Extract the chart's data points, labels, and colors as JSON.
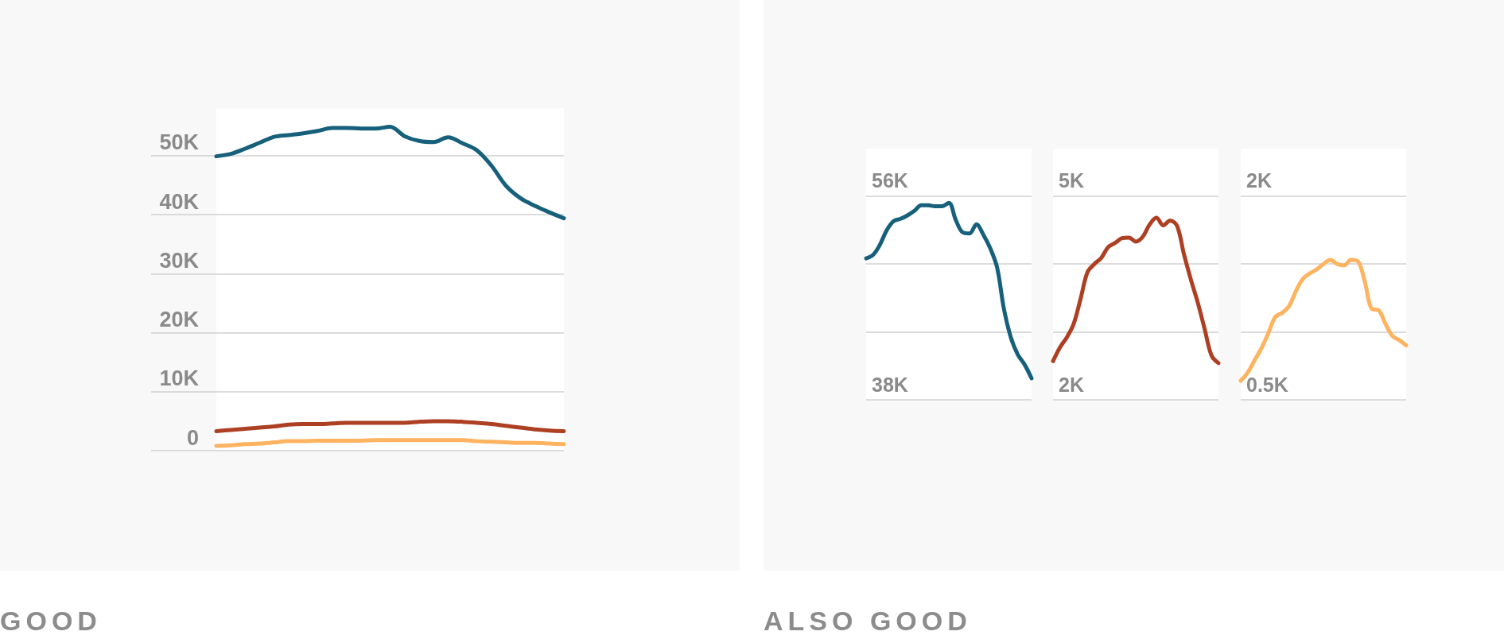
{
  "chart_data": [
    {
      "type": "line",
      "title": "GOOD",
      "categories": [
        null,
        null,
        null,
        null,
        null,
        null,
        null,
        null,
        null,
        null,
        null,
        null,
        null,
        null,
        null,
        null,
        null,
        null,
        null,
        null,
        null,
        null,
        null,
        null,
        null
      ],
      "series": [
        {
          "color": "#17607c",
          "values": [
            49900,
            50300,
            51200,
            52200,
            53200,
            53500,
            53800,
            54200,
            54700,
            54700,
            54600,
            54600,
            54900,
            53300,
            52500,
            52300,
            53100,
            52100,
            50900,
            48300,
            44900,
            42800,
            41500,
            40400,
            39400
          ]
        },
        {
          "color": "#ad3f22",
          "values": [
            3300,
            3500,
            3700,
            3900,
            4100,
            4400,
            4500,
            4500,
            4600,
            4700,
            4700,
            4700,
            4700,
            4700,
            4900,
            5000,
            5000,
            4900,
            4700,
            4500,
            4200,
            3900,
            3600,
            3400,
            3300
          ]
        },
        {
          "color": "#fdb35f",
          "values": [
            800,
            900,
            1100,
            1200,
            1400,
            1600,
            1600,
            1700,
            1700,
            1700,
            1700,
            1800,
            1800,
            1800,
            1800,
            1800,
            1800,
            1800,
            1600,
            1500,
            1400,
            1300,
            1300,
            1200,
            1100
          ]
        }
      ],
      "ylim": [
        0,
        58000
      ],
      "yticks": [
        0,
        {
          "value": 10000,
          "label": "10K"
        },
        {
          "value": 20000,
          "label": "20K"
        },
        {
          "value": 30000,
          "label": "30K"
        },
        {
          "value": 40000,
          "label": "40K"
        },
        {
          "value": 50000,
          "label": "50K"
        }
      ],
      "grid": "y",
      "tick_labels": "y",
      "marker": "none"
    },
    {
      "type": "line",
      "title": "ALSO GOOD",
      "categories": [
        null,
        null,
        null,
        null,
        null,
        null,
        null,
        null,
        null,
        null,
        null,
        null,
        null,
        null,
        null,
        null,
        null,
        null,
        null,
        null,
        null,
        null,
        null,
        null,
        null
      ],
      "series": [
        {
          "color": "#17607c",
          "values": [
            50500,
            50800,
            51700,
            53000,
            53800,
            54000,
            54300,
            54700,
            55200,
            55200,
            55100,
            55100,
            55400,
            53900,
            52800,
            52700,
            53500,
            52600,
            51400,
            49700,
            46000,
            43500,
            42000,
            41100,
            39900
          ]
        }
      ],
      "ylim": [
        38000,
        60200
      ],
      "yticks": [
        {
          "value": 38000,
          "label": "38K"
        },
        {
          "value": 44000,
          "label": null
        },
        {
          "value": 50000,
          "label": null
        },
        {
          "value": 56000,
          "label": "56K"
        }
      ],
      "grid": "y",
      "tick_labels": "y",
      "marker": "none"
    },
    {
      "type": "line",
      "categories": [
        null,
        null,
        null,
        null,
        null,
        null,
        null,
        null,
        null,
        null,
        null,
        null,
        null,
        null,
        null,
        null,
        null,
        null,
        null,
        null,
        null,
        null,
        null,
        null,
        null
      ],
      "series": [
        {
          "color": "#ad3f22",
          "values": [
            2570,
            2770,
            2920,
            3120,
            3490,
            3880,
            4000,
            4090,
            4250,
            4310,
            4380,
            4390,
            4330,
            4400,
            4580,
            4680,
            4570,
            4640,
            4560,
            4140,
            3770,
            3430,
            3040,
            2650,
            2540
          ]
        }
      ],
      "ylim": [
        2000,
        5700
      ],
      "yticks": [
        {
          "value": 2000,
          "label": "2K"
        },
        {
          "value": 3000,
          "label": null
        },
        {
          "value": 4000,
          "label": null
        },
        {
          "value": 5000,
          "label": "5K"
        }
      ],
      "grid": "y",
      "tick_labels": "y",
      "marker": "none"
    },
    {
      "type": "line",
      "categories": [
        null,
        null,
        null,
        null,
        null,
        null,
        null,
        null,
        null,
        null,
        null,
        null,
        null,
        null,
        null,
        null,
        null,
        null,
        null,
        null,
        null,
        null,
        null,
        null,
        null
      ],
      "series": [
        {
          "color": "#fdb35f",
          "values": [
            640,
            700,
            790,
            880,
            990,
            1110,
            1140,
            1190,
            1300,
            1390,
            1430,
            1460,
            1500,
            1530,
            1500,
            1490,
            1530,
            1520,
            1370,
            1170,
            1160,
            1060,
            970,
            940,
            900
          ]
        }
      ],
      "ylim": [
        500,
        2350
      ],
      "yticks": [
        {
          "value": 500,
          "label": "0.5K"
        },
        {
          "value": 1000,
          "label": null
        },
        {
          "value": 1500,
          "label": null
        },
        {
          "value": 2000,
          "label": "2K"
        }
      ],
      "grid": "y",
      "tick_labels": "y",
      "marker": "none"
    }
  ]
}
